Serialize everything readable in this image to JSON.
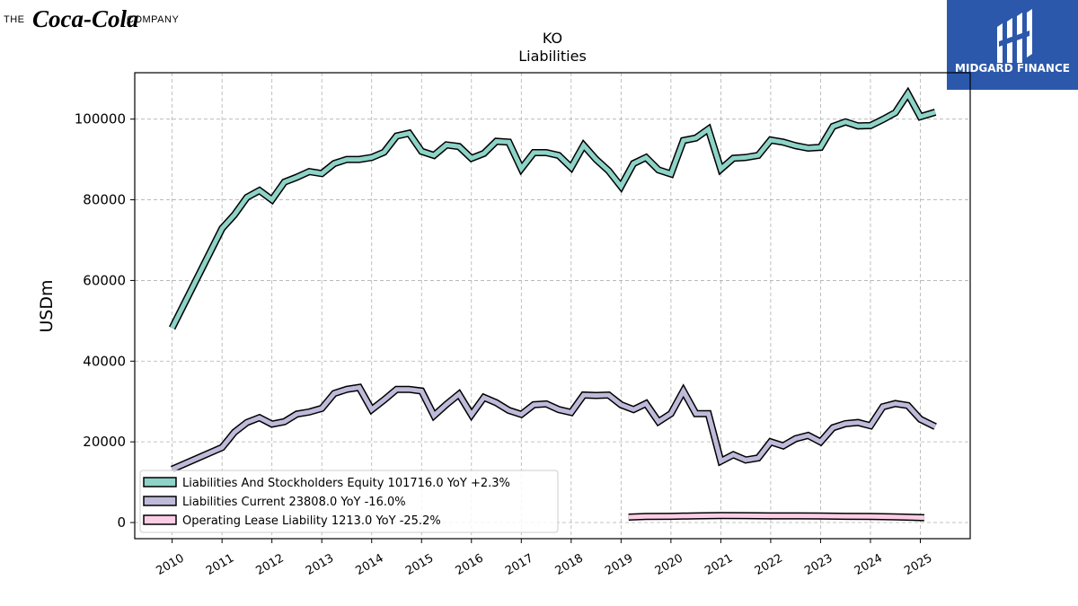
{
  "header": {
    "company_prefix": "THE",
    "company_script": "Coca-Cola",
    "company_suffix": "COMPANY",
    "brand_name": "MIDGARD FINANCE",
    "brand_color": "#2b58ab"
  },
  "chart_data": {
    "type": "line",
    "title": "KO",
    "subtitle": "Liabilities",
    "xlabel": "",
    "ylabel": "USDm",
    "xlim": [
      2009.25,
      2026.0
    ],
    "ylim": [
      -4000,
      111500
    ],
    "x_ticks": [
      2010,
      2011,
      2012,
      2013,
      2014,
      2015,
      2016,
      2017,
      2018,
      2019,
      2020,
      2021,
      2022,
      2023,
      2024,
      2025
    ],
    "y_ticks": [
      0,
      20000,
      40000,
      60000,
      80000,
      100000
    ],
    "grid": true,
    "legend_position": "lower-left",
    "series": [
      {
        "name": "Liabilities And Stockholders Equity",
        "legend": "Liabilities And Stockholders Equity  101716.0 YoY +2.3%",
        "color": "#8dd3c7",
        "x": [
          2010.0,
          2011.0,
          2011.25,
          2011.5,
          2011.75,
          2012.0,
          2012.25,
          2012.5,
          2012.75,
          2013.0,
          2013.25,
          2013.5,
          2013.75,
          2014.0,
          2014.25,
          2014.5,
          2014.75,
          2015.0,
          2015.25,
          2015.5,
          2015.75,
          2016.0,
          2016.25,
          2016.5,
          2016.75,
          2017.0,
          2017.25,
          2017.5,
          2017.75,
          2018.0,
          2018.25,
          2018.5,
          2018.75,
          2019.0,
          2019.25,
          2019.5,
          2019.75,
          2020.0,
          2020.25,
          2020.5,
          2020.75,
          2021.0,
          2021.25,
          2021.5,
          2021.75,
          2022.0,
          2022.25,
          2022.5,
          2022.75,
          2023.0,
          2023.25,
          2023.5,
          2023.75,
          2024.0,
          2024.25,
          2024.5,
          2024.75,
          2025.0,
          2025.3
        ],
        "values": [
          48200,
          72900,
          76300,
          80600,
          82300,
          80000,
          84400,
          85600,
          87000,
          86500,
          89000,
          90000,
          90000,
          90500,
          91800,
          95800,
          96500,
          92000,
          91000,
          93600,
          93200,
          90300,
          91500,
          94500,
          94300,
          87700,
          91700,
          91700,
          91000,
          88000,
          93500,
          90000,
          87200,
          83300,
          89000,
          90500,
          87400,
          86400,
          94700,
          95300,
          97500,
          87600,
          90300,
          90500,
          91000,
          94800,
          94300,
          93400,
          92800,
          93000,
          98200,
          99300,
          98300,
          98400,
          99900,
          101600,
          106300,
          100600,
          101700
        ]
      },
      {
        "name": "Liabilities Current",
        "legend": "Liabilities Current  23808.0 YoY -16.0%",
        "color": "#bebada",
        "x": [
          2010.0,
          2011.0,
          2011.25,
          2011.5,
          2011.75,
          2012.0,
          2012.25,
          2012.5,
          2012.75,
          2013.0,
          2013.25,
          2013.5,
          2013.75,
          2014.0,
          2014.25,
          2014.5,
          2014.75,
          2015.0,
          2015.25,
          2015.5,
          2015.75,
          2016.0,
          2016.25,
          2016.5,
          2016.75,
          2017.0,
          2017.25,
          2017.5,
          2017.75,
          2018.0,
          2018.25,
          2018.5,
          2018.75,
          2019.0,
          2019.25,
          2019.5,
          2019.75,
          2020.0,
          2020.25,
          2020.5,
          2020.75,
          2021.0,
          2021.25,
          2021.5,
          2021.75,
          2022.0,
          2022.25,
          2022.5,
          2022.75,
          2023.0,
          2023.25,
          2023.5,
          2023.75,
          2024.0,
          2024.25,
          2024.5,
          2024.75,
          2025.0,
          2025.3
        ],
        "values": [
          13200,
          18600,
          22400,
          24800,
          26000,
          24400,
          25000,
          26900,
          27400,
          28300,
          32000,
          33000,
          33500,
          28000,
          30400,
          33000,
          33000,
          32600,
          26500,
          29300,
          31800,
          26700,
          31000,
          29700,
          27800,
          26800,
          29200,
          29400,
          28000,
          27300,
          31600,
          31500,
          31600,
          29200,
          28000,
          29500,
          25000,
          27000,
          32600,
          27000,
          27000,
          15200,
          16800,
          15500,
          16000,
          20000,
          19000,
          20800,
          21600,
          20000,
          23500,
          24500,
          24800,
          24000,
          28700,
          29500,
          29000,
          25600,
          23800
        ]
      },
      {
        "name": "Operating Lease Liability",
        "legend": "Operating Lease Liability  1213.0 YoY -25.2%",
        "color": "#fccde5",
        "x": [
          2019.15,
          2019.5,
          2020.0,
          2020.5,
          2021.0,
          2021.5,
          2022.0,
          2022.5,
          2023.0,
          2023.5,
          2024.0,
          2024.5,
          2025.08
        ],
        "values": [
          1350,
          1500,
          1550,
          1650,
          1750,
          1700,
          1650,
          1650,
          1600,
          1550,
          1500,
          1400,
          1213
        ]
      }
    ]
  }
}
